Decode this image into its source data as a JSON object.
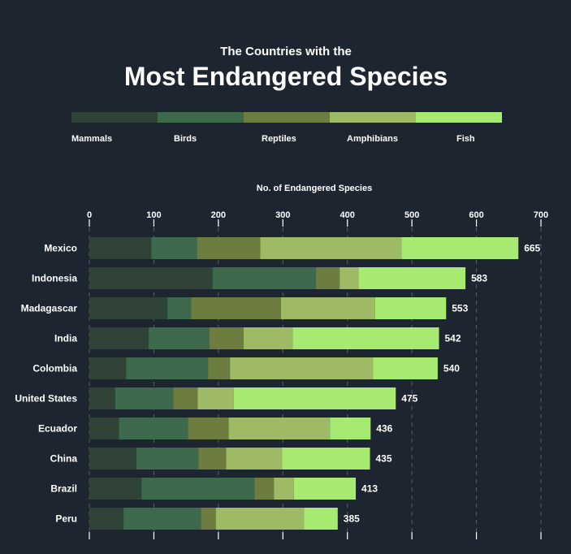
{
  "header": {
    "subtitle": "The Countries with the",
    "title": "Most Endangered Species"
  },
  "chart_data": {
    "type": "bar",
    "orientation": "horizontal",
    "stacked": true,
    "title": "The Countries with the Most Endangered Species",
    "xlabel": "No. of Endangered Species",
    "ylabel": "",
    "xlim": [
      0,
      700
    ],
    "xticks": [
      0,
      100,
      200,
      300,
      400,
      500,
      600,
      700
    ],
    "legend_position": "top",
    "categories": [
      "Mexico",
      "Indonesia",
      "Madagascar",
      "India",
      "Colombia",
      "United States",
      "Ecuador",
      "China",
      "Brazil",
      "Peru"
    ],
    "series": [
      {
        "name": "Mammals",
        "color": "#2f4437",
        "values": [
          96,
          191,
          121,
          92,
          57,
          40,
          46,
          73,
          81,
          53
        ]
      },
      {
        "name": "Birds",
        "color": "#3d6a4d",
        "values": [
          71,
          160,
          37,
          94,
          127,
          90,
          107,
          96,
          175,
          120
        ]
      },
      {
        "name": "Reptiles",
        "color": "#6d7d3f",
        "values": [
          98,
          37,
          139,
          53,
          34,
          38,
          63,
          43,
          30,
          23
        ]
      },
      {
        "name": "Amphibians",
        "color": "#9fba64",
        "values": [
          219,
          29,
          146,
          76,
          222,
          56,
          157,
          87,
          31,
          137
        ]
      },
      {
        "name": "Fish",
        "color": "#a6ea72",
        "values": [
          181,
          166,
          110,
          227,
          100,
          251,
          63,
          136,
          96,
          52
        ]
      }
    ],
    "totals": [
      665,
      583,
      553,
      542,
      540,
      475,
      436,
      435,
      413,
      385
    ]
  }
}
